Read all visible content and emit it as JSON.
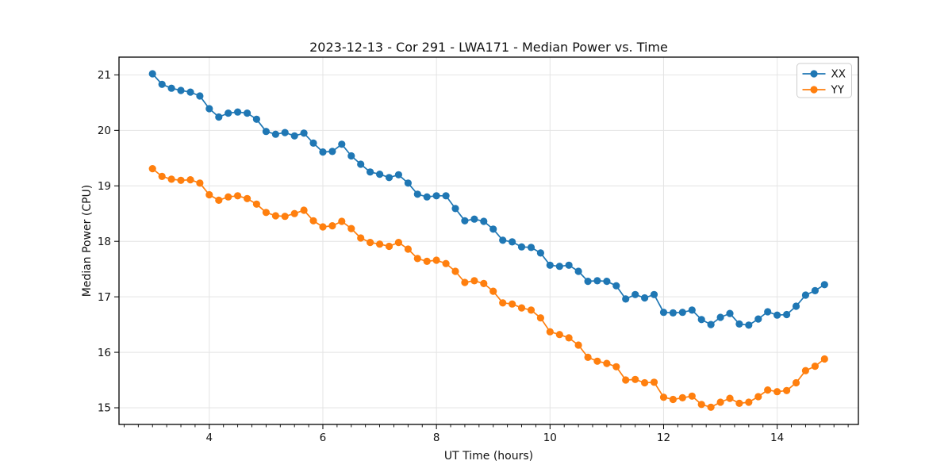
{
  "figure": {
    "background": "#ffffff",
    "plot_background": "#ffffff",
    "grid_color": "#e4e4e4",
    "spine_color": "#000000",
    "text_color": "#111111"
  },
  "chart_data": {
    "type": "line",
    "title": "2023-12-13 - Cor 291 - LWA171 - Median Power vs. Time",
    "xlabel": "UT Time (hours)",
    "ylabel": "Median Power (CPU)",
    "xlim": [
      2.41,
      15.43
    ],
    "ylim": [
      14.7,
      21.32
    ],
    "xticks": [
      4,
      6,
      8,
      10,
      12,
      14
    ],
    "yticks": [
      15,
      16,
      17,
      18,
      19,
      20,
      21
    ],
    "x_minor_tick_step": 0.25,
    "grid": "major-only",
    "legend_position": "upper right",
    "marker": "circle",
    "x": [
      3.0,
      3.167,
      3.333,
      3.5,
      3.667,
      3.833,
      4.0,
      4.167,
      4.333,
      4.5,
      4.667,
      4.833,
      5.0,
      5.167,
      5.333,
      5.5,
      5.667,
      5.833,
      6.0,
      6.167,
      6.333,
      6.5,
      6.667,
      6.833,
      7.0,
      7.167,
      7.333,
      7.5,
      7.667,
      7.833,
      8.0,
      8.167,
      8.333,
      8.5,
      8.667,
      8.833,
      9.0,
      9.167,
      9.333,
      9.5,
      9.667,
      9.833,
      10.0,
      10.167,
      10.333,
      10.5,
      10.667,
      10.833,
      11.0,
      11.167,
      11.333,
      11.5,
      11.667,
      11.833,
      12.0,
      12.167,
      12.333,
      12.5,
      12.667,
      12.833,
      13.0,
      13.167,
      13.333,
      13.5,
      13.667,
      13.833,
      14.0,
      14.167,
      14.333,
      14.5,
      14.667,
      14.833
    ],
    "series": [
      {
        "name": "XX",
        "color": "#1f77b4",
        "values": [
          21.02,
          20.83,
          20.76,
          20.72,
          20.69,
          20.62,
          20.39,
          20.24,
          20.31,
          20.33,
          20.31,
          20.2,
          19.98,
          19.93,
          19.96,
          19.9,
          19.95,
          19.77,
          19.61,
          19.62,
          19.75,
          19.54,
          19.39,
          19.25,
          19.21,
          19.15,
          19.2,
          19.05,
          18.85,
          18.8,
          18.82,
          18.82,
          18.59,
          18.37,
          18.4,
          18.36,
          18.22,
          18.02,
          17.99,
          17.9,
          17.89,
          17.79,
          17.57,
          17.55,
          17.57,
          17.46,
          17.28,
          17.29,
          17.28,
          17.2,
          16.96,
          17.04,
          16.98,
          17.04,
          16.72,
          16.71,
          16.72,
          16.76,
          16.59,
          16.5,
          16.63,
          16.7,
          16.51,
          16.49,
          16.6,
          16.73,
          16.67,
          16.68,
          16.83,
          17.03,
          17.11,
          17.22
        ]
      },
      {
        "name": "YY",
        "color": "#ff7f0e",
        "values": [
          19.31,
          19.17,
          19.12,
          19.1,
          19.11,
          19.05,
          18.84,
          18.74,
          18.8,
          18.82,
          18.77,
          18.67,
          18.52,
          18.46,
          18.45,
          18.5,
          18.56,
          18.37,
          18.26,
          18.28,
          18.36,
          18.23,
          18.06,
          17.98,
          17.95,
          17.91,
          17.98,
          17.86,
          17.69,
          17.64,
          17.66,
          17.6,
          17.46,
          17.26,
          17.29,
          17.24,
          17.1,
          16.89,
          16.87,
          16.8,
          16.76,
          16.62,
          16.37,
          16.32,
          16.26,
          16.13,
          15.91,
          15.84,
          15.8,
          15.74,
          15.5,
          15.51,
          15.45,
          15.46,
          15.19,
          15.15,
          15.18,
          15.21,
          15.06,
          15.01,
          15.1,
          15.17,
          15.08,
          15.1,
          15.2,
          15.32,
          15.29,
          15.31,
          15.45,
          15.67,
          15.75,
          15.88
        ]
      }
    ]
  }
}
